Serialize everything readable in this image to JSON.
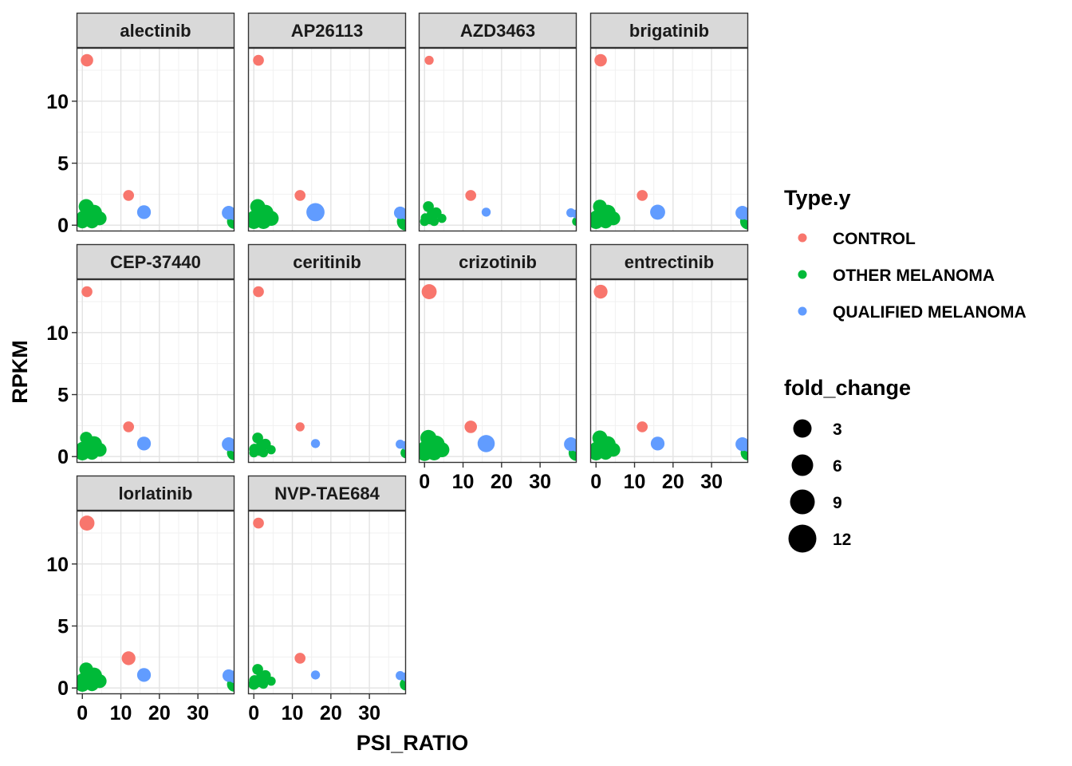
{
  "chart_data": {
    "type": "scatter",
    "xlabel": "PSI_RATIO",
    "ylabel": "RPKM",
    "xlim": [
      -1.5,
      39.5
    ],
    "ylim": [
      -0.5,
      14.3
    ],
    "x_ticks": [
      0,
      10,
      20,
      30
    ],
    "y_ticks": [
      0,
      5,
      10
    ],
    "grid": true,
    "legend_position": "right",
    "color_legend": {
      "title": "Type.y",
      "entries": [
        {
          "label": "CONTROL",
          "color": "#F8766D"
        },
        {
          "label": "OTHER MELANOMA",
          "color": "#00BA38"
        },
        {
          "label": "QUALIFIED MELANOMA",
          "color": "#619CFF"
        }
      ]
    },
    "size_legend": {
      "title": "fold_change",
      "values": [
        3,
        6,
        9,
        12
      ]
    },
    "base_points": [
      {
        "x": 1.2,
        "y": 13.3,
        "type": "CONTROL"
      },
      {
        "x": 12.0,
        "y": 2.4,
        "type": "CONTROL"
      },
      {
        "x": 1.0,
        "y": 1.5,
        "type": "OTHER MELANOMA"
      },
      {
        "x": 0.2,
        "y": 0.6,
        "type": "OTHER MELANOMA"
      },
      {
        "x": 0.0,
        "y": 0.3,
        "type": "OTHER MELANOMA"
      },
      {
        "x": 1.5,
        "y": 0.5,
        "type": "OTHER MELANOMA"
      },
      {
        "x": 2.0,
        "y": 0.9,
        "type": "OTHER MELANOMA"
      },
      {
        "x": 3.0,
        "y": 1.0,
        "type": "OTHER MELANOMA"
      },
      {
        "x": 2.5,
        "y": 0.3,
        "type": "OTHER MELANOMA"
      },
      {
        "x": 4.5,
        "y": 0.55,
        "type": "OTHER MELANOMA"
      },
      {
        "x": 39.5,
        "y": 0.3,
        "type": "OTHER MELANOMA"
      },
      {
        "x": 16.0,
        "y": 1.05,
        "type": "QUALIFIED MELANOMA"
      },
      {
        "x": 38.0,
        "y": 1.0,
        "type": "QUALIFIED MELANOMA"
      },
      {
        "x": 39.5,
        "y": 0.9,
        "type": "QUALIFIED MELANOMA"
      }
    ],
    "panels": [
      {
        "name": "alectinib",
        "fold_change": [
          4,
          3,
          6,
          5,
          5,
          6,
          6,
          7,
          5,
          5,
          6,
          5,
          5,
          4
        ]
      },
      {
        "name": "AP26113",
        "fold_change": [
          3,
          3,
          6,
          6,
          6,
          7,
          7,
          7,
          6,
          6,
          9,
          9,
          4,
          3
        ]
      },
      {
        "name": "AZD3463",
        "fold_change": [
          2,
          3,
          3,
          2,
          2,
          3,
          3,
          3,
          2,
          2,
          2,
          2,
          2,
          2
        ]
      },
      {
        "name": "brigatinib",
        "fold_change": [
          4,
          3,
          5,
          6,
          6,
          6,
          7,
          7,
          5,
          5,
          7,
          6,
          5,
          4
        ]
      },
      {
        "name": "CEP-37440",
        "fold_change": [
          3,
          3,
          4,
          6,
          6,
          6,
          6,
          7,
          5,
          5,
          6,
          5,
          5,
          4
        ]
      },
      {
        "name": "ceritinib",
        "fold_change": [
          3,
          2,
          3,
          3,
          2,
          3,
          3,
          3,
          2,
          2,
          3,
          2,
          2,
          2
        ]
      },
      {
        "name": "crizotinib",
        "fold_change": [
          6,
          4,
          7,
          7,
          7,
          8,
          8,
          8,
          6,
          6,
          7,
          8,
          5,
          4
        ]
      },
      {
        "name": "entrectinib",
        "fold_change": [
          5,
          3,
          6,
          6,
          6,
          6,
          7,
          7,
          5,
          5,
          6,
          5,
          5,
          4
        ]
      },
      {
        "name": "lorlatinib",
        "fold_change": [
          6,
          5,
          5,
          6,
          6,
          6,
          6,
          7,
          5,
          5,
          6,
          5,
          4,
          4
        ]
      },
      {
        "name": "NVP-TAE684",
        "fold_change": [
          3,
          3,
          3,
          3,
          3,
          3,
          3,
          3,
          2,
          2,
          4,
          2,
          2,
          2
        ]
      }
    ]
  }
}
